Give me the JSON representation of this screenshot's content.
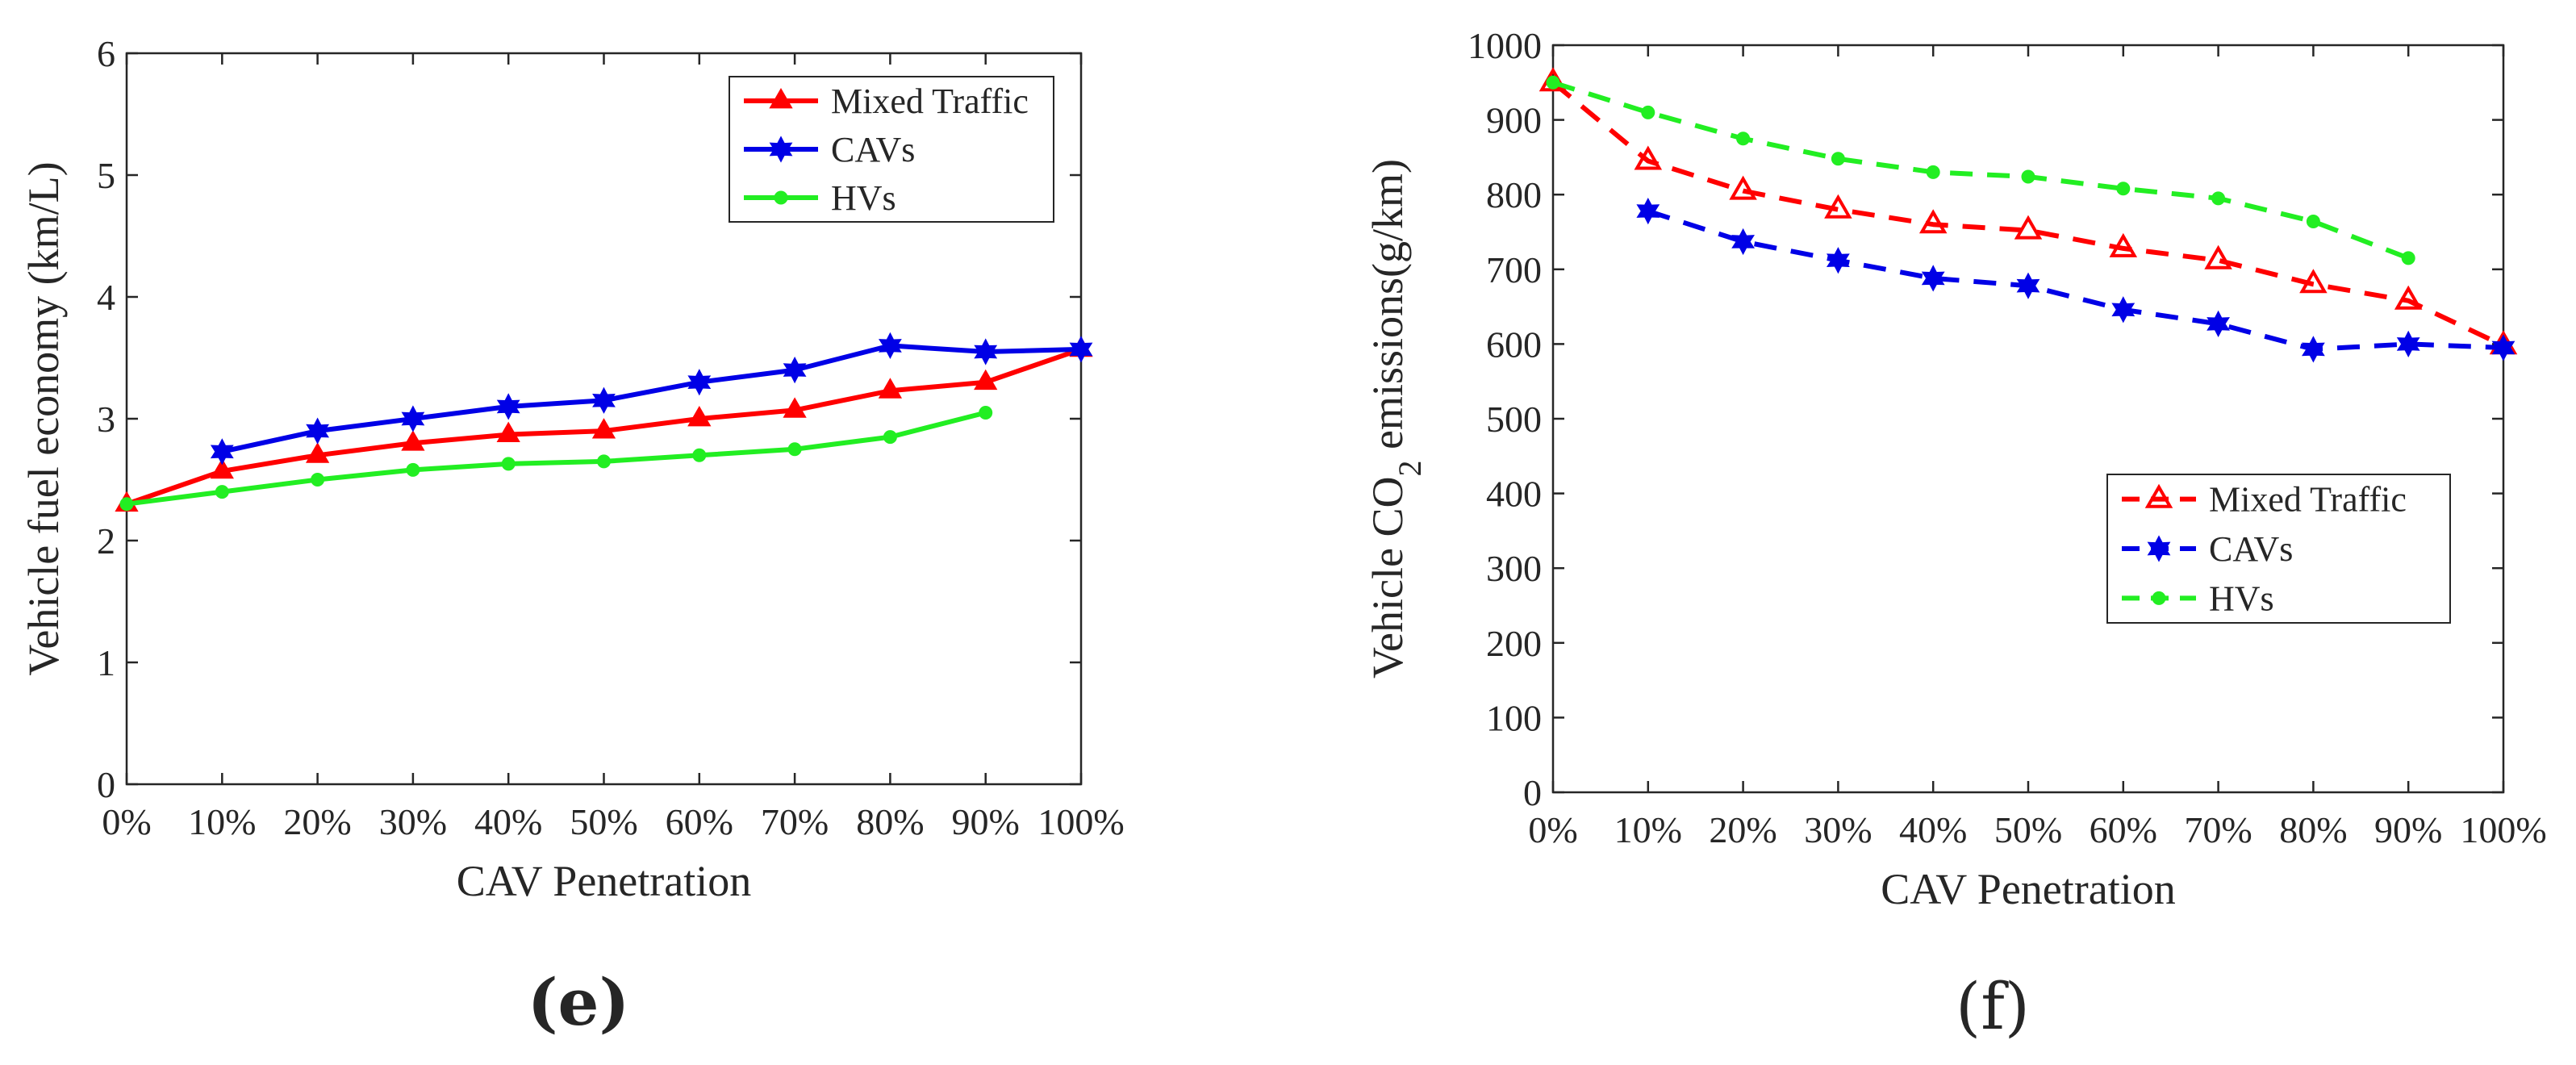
{
  "chart_data": [
    {
      "type": "line",
      "panel_label": "(e)",
      "title": "",
      "xlabel": "CAV Penetration",
      "ylabel": "Vehicle fuel economy (km/L)",
      "x": [
        "0%",
        "10%",
        "20%",
        "30%",
        "40%",
        "50%",
        "60%",
        "70%",
        "80%",
        "90%",
        "100%"
      ],
      "ylim": [
        0,
        6
      ],
      "yticks": [
        "0",
        "1",
        "2",
        "3",
        "4",
        "5",
        "6"
      ],
      "legend_position": "top-right",
      "grid": false,
      "series": [
        {
          "name": "Mixed Traffic",
          "color": "#ff0000",
          "line_style": "solid",
          "marker": "triangle-filled",
          "values": [
            2.3,
            2.57,
            2.7,
            2.8,
            2.87,
            2.9,
            3.0,
            3.07,
            3.23,
            3.3,
            3.57
          ]
        },
        {
          "name": "CAVs",
          "color": "#0000e6",
          "line_style": "solid",
          "marker": "hexagram",
          "values": [
            null,
            2.73,
            2.9,
            3.0,
            3.1,
            3.15,
            3.3,
            3.4,
            3.6,
            3.55,
            3.57
          ]
        },
        {
          "name": "HVs",
          "color": "#22ee22",
          "line_style": "solid",
          "marker": "dot",
          "values": [
            2.3,
            2.4,
            2.5,
            2.58,
            2.63,
            2.65,
            2.7,
            2.75,
            2.85,
            3.05,
            null
          ]
        }
      ]
    },
    {
      "type": "line",
      "panel_label": "(f)",
      "title": "",
      "xlabel": "CAV Penetration",
      "ylabel": "Vehicle CO",
      "ylabel_subscript": "2",
      "ylabel_suffix": " emissions(g/km)",
      "x": [
        "0%",
        "10%",
        "20%",
        "30%",
        "40%",
        "50%",
        "60%",
        "70%",
        "80%",
        "90%",
        "100%"
      ],
      "ylim": [
        0,
        1000
      ],
      "yticks": [
        "0",
        "100",
        "200",
        "300",
        "400",
        "500",
        "600",
        "700",
        "800",
        "900",
        "1000"
      ],
      "legend_position": "middle-right",
      "grid": false,
      "series": [
        {
          "name": "Mixed Traffic",
          "color": "#ff0000",
          "line_style": "dashed",
          "marker": "triangle-open",
          "values": [
            950,
            845,
            805,
            780,
            760,
            752,
            728,
            712,
            680,
            658,
            598
          ]
        },
        {
          "name": "CAVs",
          "color": "#0000e6",
          "line_style": "dashed",
          "marker": "hexagram",
          "values": [
            null,
            778,
            737,
            712,
            688,
            678,
            646,
            627,
            593,
            600,
            595
          ]
        },
        {
          "name": "HVs",
          "color": "#22ee22",
          "line_style": "dashed",
          "marker": "dot",
          "values": [
            950,
            910,
            875,
            848,
            830,
            824,
            808,
            795,
            764,
            715,
            null
          ]
        }
      ]
    }
  ]
}
